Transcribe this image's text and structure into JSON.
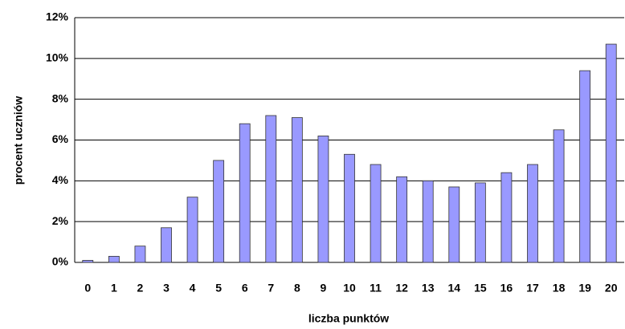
{
  "chart_data": {
    "type": "bar",
    "x_label": "liczba punktów",
    "y_label": "procent uczniów",
    "categories": [
      "0",
      "1",
      "2",
      "3",
      "4",
      "5",
      "6",
      "7",
      "8",
      "9",
      "10",
      "11",
      "12",
      "13",
      "14",
      "15",
      "16",
      "17",
      "18",
      "19",
      "20"
    ],
    "values": [
      0.1,
      0.3,
      0.8,
      1.7,
      3.2,
      5.0,
      6.8,
      7.2,
      7.1,
      6.2,
      5.3,
      4.8,
      4.2,
      4.0,
      3.7,
      3.9,
      4.4,
      4.8,
      6.5,
      9.4,
      10.7
    ],
    "color": "#9999ff",
    "ylim": [
      0,
      12
    ],
    "yticks": [
      {
        "value": 0,
        "label": "0%"
      },
      {
        "value": 2,
        "label": "2%"
      },
      {
        "value": 4,
        "label": "4%"
      },
      {
        "value": 6,
        "label": "6%"
      },
      {
        "value": 8,
        "label": "8%"
      },
      {
        "value": 10,
        "label": "10%"
      },
      {
        "value": 12,
        "label": "12%"
      }
    ],
    "grid": true
  }
}
